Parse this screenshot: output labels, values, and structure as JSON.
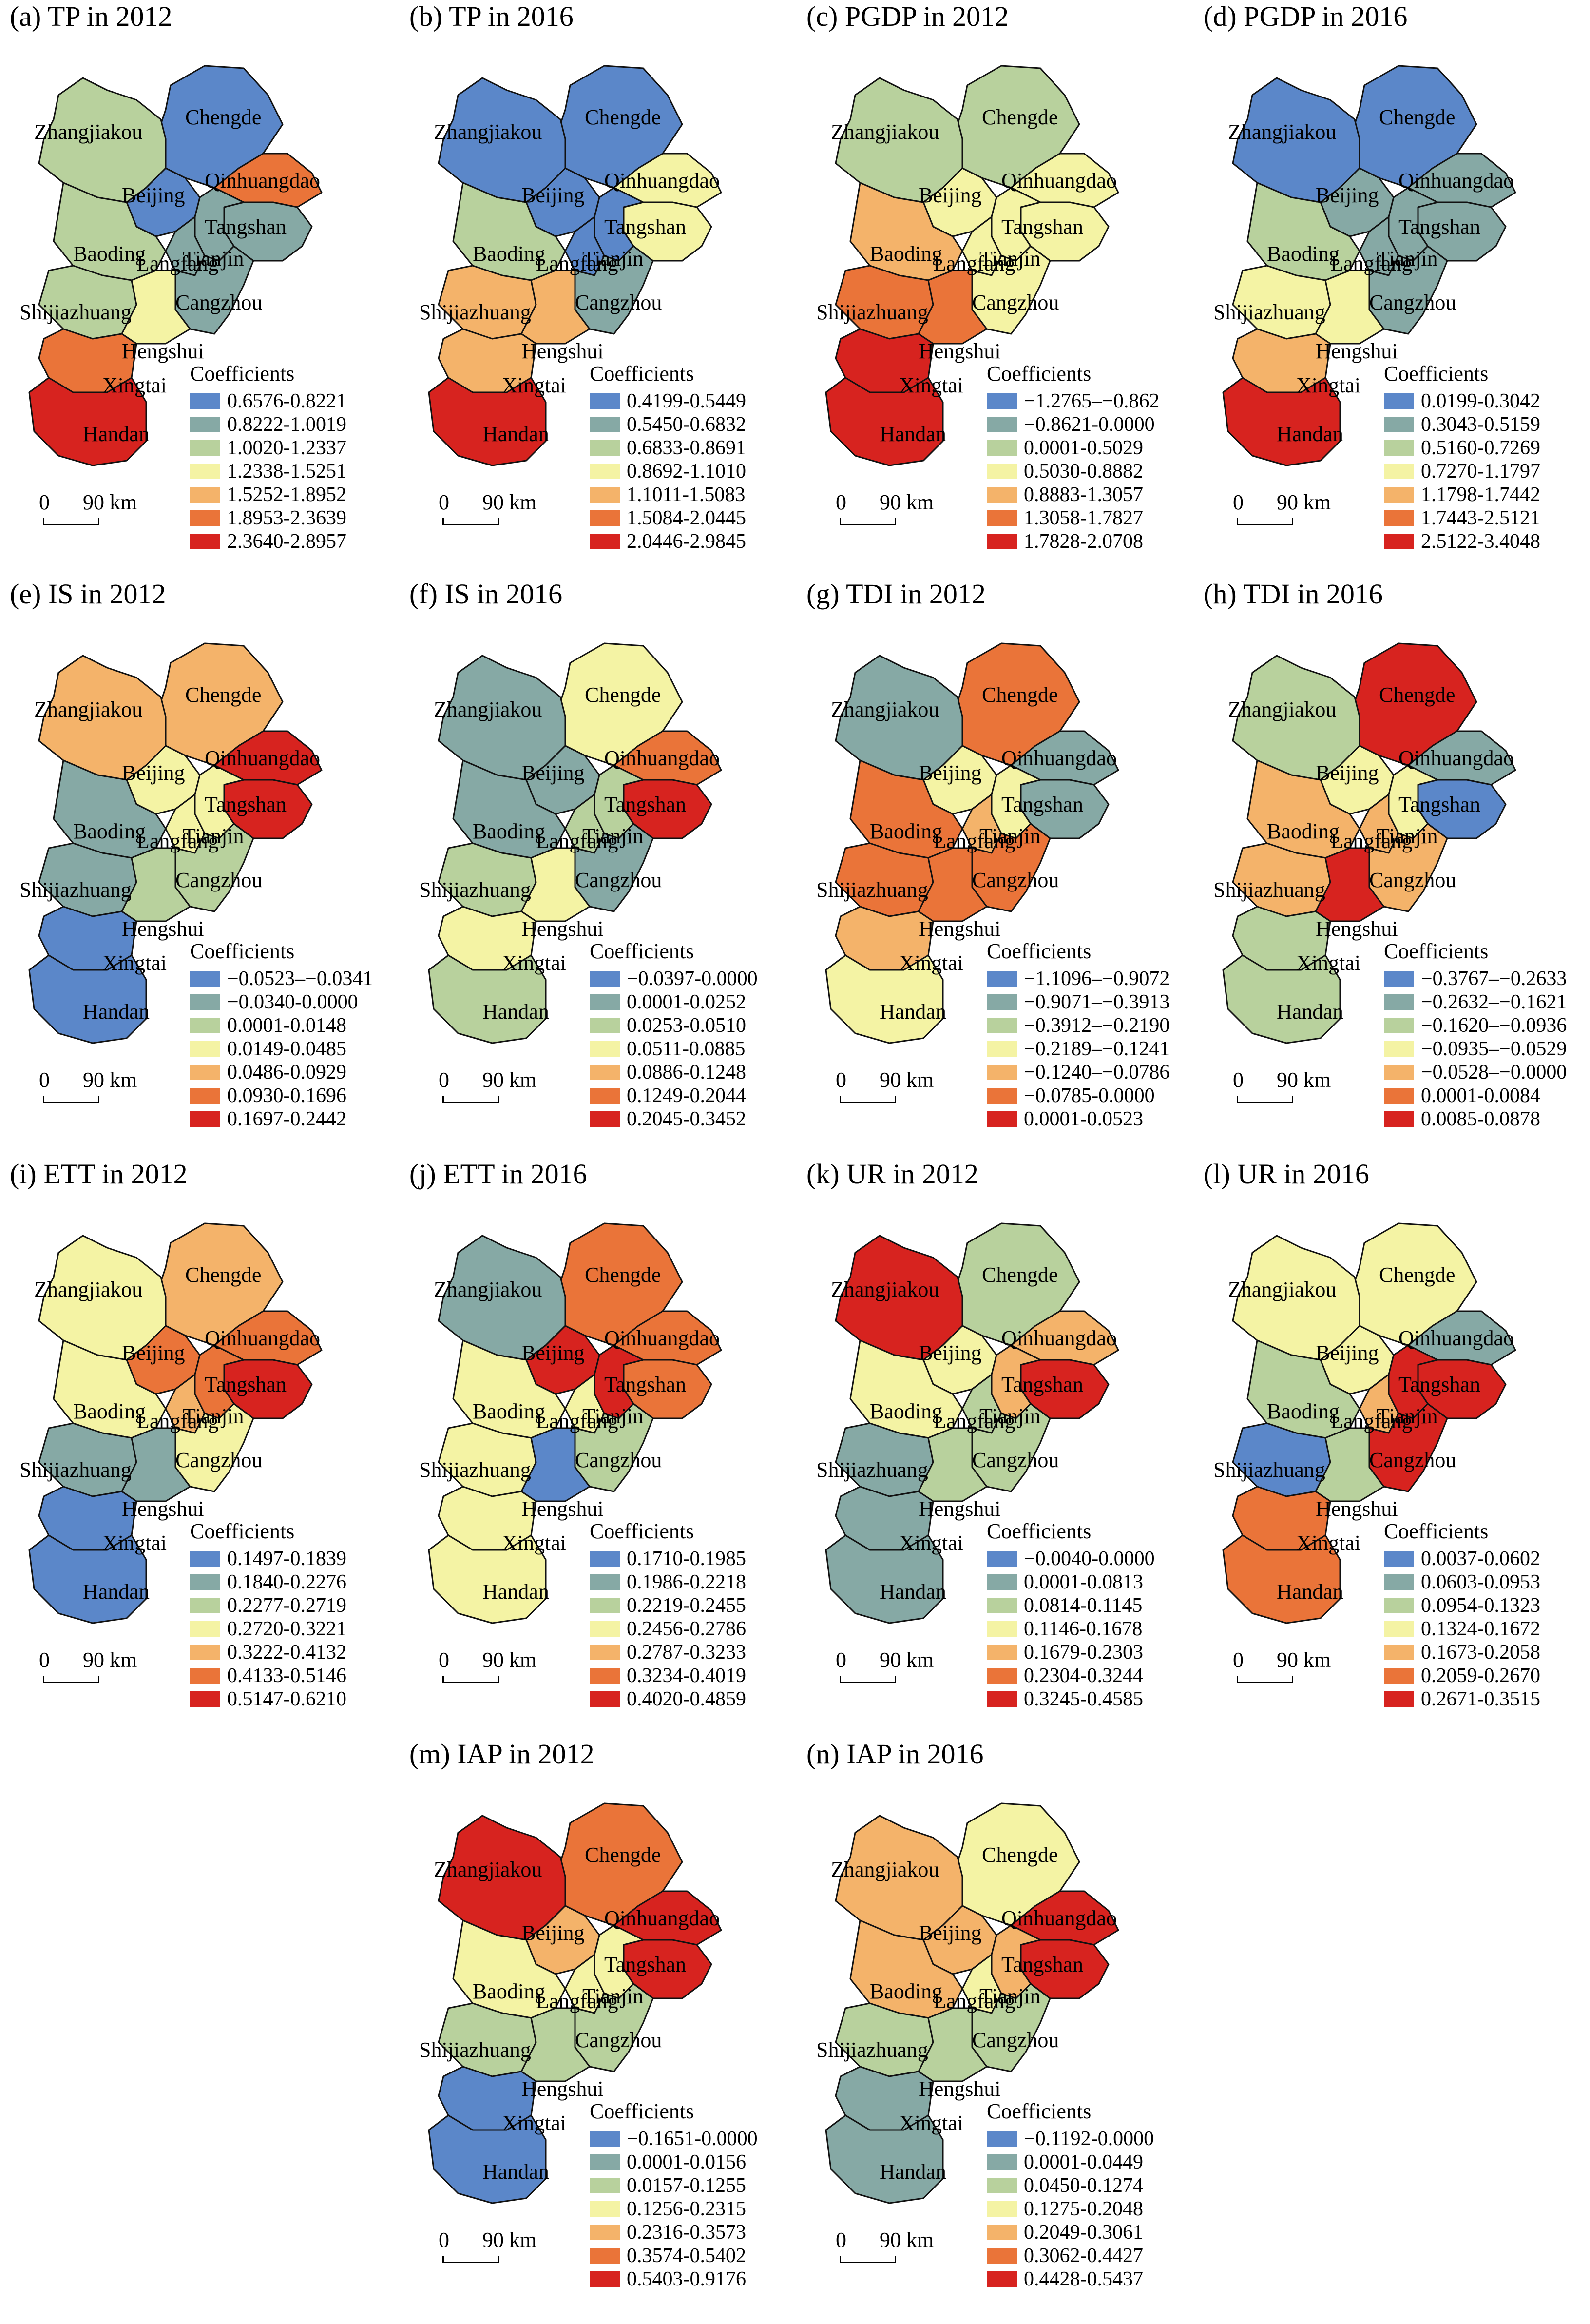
{
  "scalebar": {
    "zero": "0",
    "distance": "90 km"
  },
  "legend_title": "Coefficients",
  "class_colors": [
    "#5b87c9",
    "#86a9a5",
    "#b8d19d",
    "#f4f3a4",
    "#f4b36a",
    "#ea7439",
    "#d7231f"
  ],
  "cities": [
    "Chengde",
    "Zhangjiakou",
    "Beijing",
    "Qinhuangdao",
    "Tangshan",
    "Tianjin",
    "Langfang",
    "Baoding",
    "Cangzhou",
    "Shijiazhuang",
    "Hengshui",
    "Xingtai",
    "Handan"
  ],
  "panels": [
    {
      "id": "a",
      "title": "(a) TP in 2012",
      "city_classes": [
        0,
        2,
        0,
        5,
        1,
        1,
        1,
        2,
        1,
        2,
        3,
        5,
        6
      ],
      "legend": [
        "0.6576-0.8221",
        "0.8222-1.0019",
        "1.0020-1.2337",
        "1.2338-1.5251",
        "1.5252-1.8952",
        "1.8953-2.3639",
        "2.3640-2.8957"
      ]
    },
    {
      "id": "b",
      "title": "(b) TP in 2016",
      "city_classes": [
        0,
        0,
        0,
        3,
        3,
        0,
        0,
        2,
        1,
        4,
        4,
        4,
        6
      ],
      "legend": [
        "0.4199-0.5449",
        "0.5450-0.6832",
        "0.6833-0.8691",
        "0.8692-1.1010",
        "1.1011-1.5083",
        "1.5084-2.0445",
        "2.0446-2.9845"
      ]
    },
    {
      "id": "c",
      "title": "(c) PGDP in 2012",
      "city_classes": [
        2,
        2,
        3,
        3,
        3,
        3,
        3,
        4,
        3,
        5,
        5,
        6,
        6
      ],
      "legend": [
        "−1.2765–−0.862",
        "−0.8621-0.0000",
        "0.0001-0.5029",
        "0.5030-0.8882",
        "0.8883-1.3057",
        "1.3058-1.7827",
        "1.7828-2.0708"
      ]
    },
    {
      "id": "d",
      "title": "(d) PGDP in 2016",
      "city_classes": [
        0,
        0,
        1,
        1,
        1,
        1,
        1,
        2,
        1,
        3,
        3,
        4,
        6
      ],
      "legend": [
        "0.0199-0.3042",
        "0.3043-0.5159",
        "0.5160-0.7269",
        "0.7270-1.1797",
        "1.1798-1.7442",
        "1.7443-2.5121",
        "2.5122-3.4048"
      ]
    },
    {
      "id": "e",
      "title": "(e) IS in 2012",
      "city_classes": [
        4,
        4,
        3,
        6,
        6,
        3,
        3,
        1,
        2,
        1,
        2,
        0,
        0
      ],
      "legend": [
        "−0.0523–−0.0341",
        "−0.0340-0.0000",
        "0.0001-0.0148",
        "0.0149-0.0485",
        "0.0486-0.0929",
        "0.0930-0.1696",
        "0.1697-0.2442"
      ]
    },
    {
      "id": "f",
      "title": "(f) IS in 2016",
      "city_classes": [
        3,
        1,
        1,
        5,
        6,
        2,
        2,
        1,
        1,
        2,
        3,
        3,
        2
      ],
      "legend": [
        "−0.0397-0.0000",
        "0.0001-0.0252",
        "0.0253-0.0510",
        "0.0511-0.0885",
        "0.0886-0.1248",
        "0.1249-0.2044",
        "0.2045-0.3452"
      ]
    },
    {
      "id": "g",
      "title": "(g) TDI in 2012",
      "city_classes": [
        5,
        1,
        3,
        1,
        1,
        3,
        4,
        5,
        5,
        5,
        5,
        4,
        3
      ],
      "legend": [
        "−1.1096–−0.9072",
        "−0.9071–−0.3913",
        "−0.3912–−0.2190",
        "−0.2189–−0.1241",
        "−0.1240–−0.0786",
        "−0.0785-0.0000",
        "0.0001-0.0523"
      ]
    },
    {
      "id": "h",
      "title": "(h) TDI in 2016",
      "city_classes": [
        6,
        2,
        3,
        1,
        0,
        3,
        4,
        4,
        4,
        4,
        6,
        2,
        2
      ],
      "legend": [
        "−0.3767–−0.2633",
        "−0.2632–−0.1621",
        "−0.1620–−0.0936",
        "−0.0935–−0.0529",
        "−0.0528–−0.0000",
        "0.0001-0.0084",
        "0.0085-0.0878"
      ]
    },
    {
      "id": "i",
      "title": "(i) ETT in 2012",
      "city_classes": [
        4,
        3,
        5,
        5,
        6,
        5,
        4,
        3,
        3,
        1,
        1,
        0,
        0
      ],
      "legend": [
        "0.1497-0.1839",
        "0.1840-0.2276",
        "0.2277-0.2719",
        "0.2720-0.3221",
        "0.3222-0.4132",
        "0.4133-0.5146",
        "0.5147-0.6210"
      ]
    },
    {
      "id": "j",
      "title": "(j) ETT in 2016",
      "city_classes": [
        5,
        1,
        6,
        5,
        5,
        6,
        3,
        3,
        2,
        3,
        0,
        3,
        3
      ],
      "legend": [
        "0.1710-0.1985",
        "0.1986-0.2218",
        "0.2219-0.2455",
        "0.2456-0.2786",
        "0.2787-0.3233",
        "0.3234-0.4019",
        "0.4020-0.4859"
      ]
    },
    {
      "id": "k",
      "title": "(k) UR in 2012",
      "city_classes": [
        2,
        6,
        3,
        4,
        6,
        4,
        2,
        3,
        2,
        1,
        2,
        1,
        1
      ],
      "legend": [
        "−0.0040-0.0000",
        "0.0001-0.0813",
        "0.0814-0.1145",
        "0.1146-0.1678",
        "0.1679-0.2303",
        "0.2304-0.3244",
        "0.3245-0.4585"
      ]
    },
    {
      "id": "l",
      "title": "(l) UR in 2016",
      "city_classes": [
        3,
        3,
        3,
        1,
        6,
        6,
        4,
        2,
        6,
        0,
        2,
        5,
        5
      ],
      "legend": [
        "0.0037-0.0602",
        "0.0603-0.0953",
        "0.0954-0.1323",
        "0.1324-0.1672",
        "0.1673-0.2058",
        "0.2059-0.2670",
        "0.2671-0.3515"
      ]
    },
    {
      "id": "m",
      "title": "(m) IAP in 2012",
      "city_classes": [
        5,
        6,
        4,
        6,
        6,
        3,
        3,
        3,
        2,
        2,
        2,
        0,
        0
      ],
      "legend": [
        "−0.1651-0.0000",
        "0.0001-0.0156",
        "0.0157-0.1255",
        "0.1256-0.2315",
        "0.2316-0.3573",
        "0.3574-0.5402",
        "0.5403-0.9176"
      ]
    },
    {
      "id": "n",
      "title": "(n) IAP in 2016",
      "city_classes": [
        3,
        4,
        4,
        6,
        6,
        4,
        3,
        4,
        2,
        2,
        2,
        1,
        1
      ],
      "legend": [
        "−0.1192-0.0000",
        "0.0001-0.0449",
        "0.0450-0.1274",
        "0.1275-0.2048",
        "0.2049-0.3061",
        "0.3062-0.4427",
        "0.4428-0.5437"
      ]
    }
  ]
}
